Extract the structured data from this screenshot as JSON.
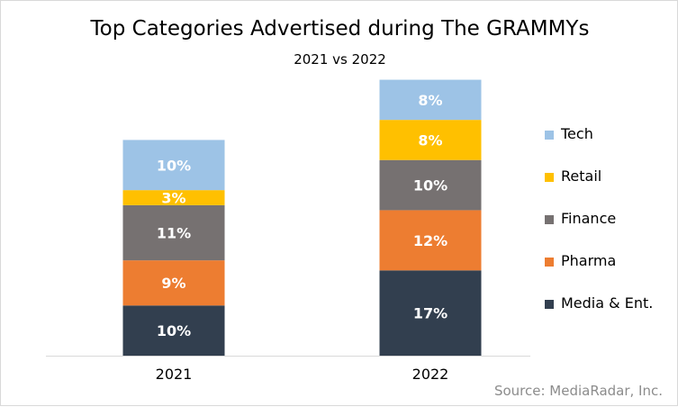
{
  "chart_data": {
    "type": "bar",
    "stacked": true,
    "title": "Top Categories Advertised during The GRAMMYs",
    "subtitle": "2021 vs 2022",
    "source": "Source: MediaRadar, Inc.",
    "categories": [
      "2021",
      "2022"
    ],
    "series": [
      {
        "name": "Media & Ent.",
        "color": "#323f4f",
        "values": [
          10,
          17
        ],
        "labels": [
          "10%",
          "17%"
        ]
      },
      {
        "name": "Pharma",
        "color": "#ed7d31",
        "values": [
          9,
          12
        ],
        "labels": [
          "9%",
          "12%"
        ]
      },
      {
        "name": "Finance",
        "color": "#767171",
        "values": [
          11,
          10
        ],
        "labels": [
          "11%",
          "10%"
        ]
      },
      {
        "name": "Retail",
        "color": "#ffc000",
        "values": [
          3,
          8
        ],
        "labels": [
          "3%",
          "8%"
        ]
      },
      {
        "name": "Tech",
        "color": "#9dc3e6",
        "values": [
          10,
          8
        ],
        "labels": [
          "10%",
          "8%"
        ]
      }
    ],
    "legend_order": [
      "Tech",
      "Retail",
      "Finance",
      "Pharma",
      "Media & Ent."
    ],
    "legend_position": "right",
    "grid": false,
    "ylim": [
      0,
      56
    ]
  }
}
